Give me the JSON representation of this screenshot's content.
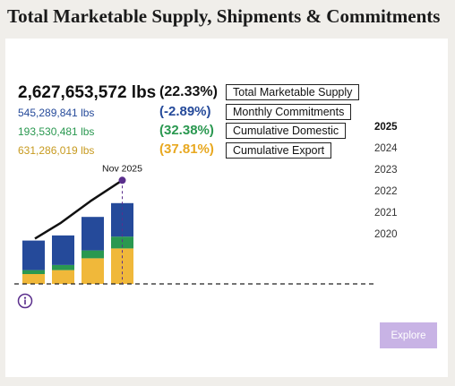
{
  "header": {
    "title": "Total Marketable Supply, Shipments & Commitments"
  },
  "stats": {
    "total_value": "2,627,653,572 lbs",
    "total_pct": "(22.33%)",
    "total_label": "Total Marketable Supply",
    "commitments_value": "545,289,841 lbs",
    "commitments_pct": "(-2.89%)",
    "commitments_label": "Monthly Commitments",
    "domestic_value": "193,530,481 lbs",
    "domestic_pct": "(32.38%)",
    "domestic_label": "Cumulative Domestic",
    "export_value": "631,286,019 lbs",
    "export_pct": "(37.81%)",
    "export_label": "Cumulative Export"
  },
  "years": [
    "2025",
    "2024",
    "2023",
    "2022",
    "2021",
    "2020"
  ],
  "selected_year": "2025",
  "colors": {
    "commitments": "#254a9a",
    "domestic": "#2a9850",
    "export": "#f0b83a",
    "marker": "#5a2e8c",
    "explore": "#c8b3e5"
  },
  "chart_data": {
    "type": "bar",
    "stacked": true,
    "marker_label": "Nov 2025",
    "series": [
      {
        "name": "Cumulative Export",
        "values": [
          0.25,
          0.35,
          0.65,
          0.9
        ]
      },
      {
        "name": "Cumulative Domestic",
        "values": [
          0.1,
          0.13,
          0.2,
          0.3
        ]
      },
      {
        "name": "Monthly Commitments",
        "values": [
          0.75,
          0.75,
          0.85,
          0.85
        ]
      }
    ],
    "line_values": [
      1.15,
      1.55,
      2.1,
      2.63
    ]
  },
  "icons": {
    "info": "info-circle-icon"
  },
  "buttons": {
    "explore_label": "Explore"
  }
}
